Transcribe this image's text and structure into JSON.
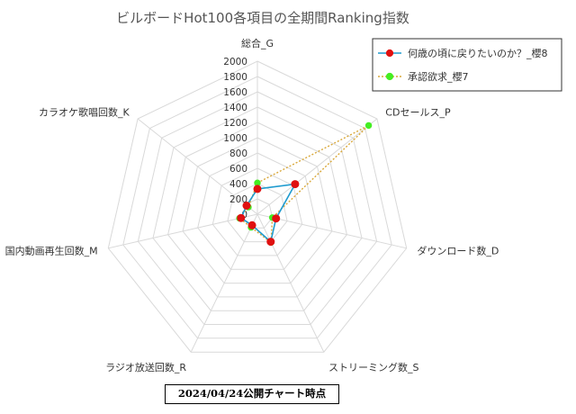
{
  "chart_data": {
    "type": "radar",
    "title": "ビルボードHot100各項目の全期間Ranking指数",
    "axes": [
      "総合_G",
      "CDセールス_P",
      "ダウンロード数_D",
      "ストリーミング数_S",
      "ラジオ放送回数_R",
      "国内動画再生回数_M",
      "カラオケ歌唱回数_K"
    ],
    "r_ticks": [
      "0",
      "200",
      "400",
      "600",
      "800",
      "1000",
      "1200",
      "1400",
      "1600",
      "1800",
      "2000"
    ],
    "rlim": [
      0,
      2000
    ],
    "grid": true,
    "legend_position": "top-right",
    "series": [
      {
        "name": "何歳の頃に戻りたいのか？_櫻8",
        "values": [
          330,
          630,
          250,
          400,
          160,
          220,
          180
        ],
        "color": "#1f9bcf",
        "marker_color": "#e01010",
        "line_style": "solid"
      },
      {
        "name": "承認欲求_櫻7",
        "values": [
          410,
          1860,
          200,
          410,
          190,
          240,
          150
        ],
        "color": "#d9a83a",
        "marker_color": "#44ee22",
        "line_style": "dotted"
      }
    ]
  },
  "footnote": "2024/04/24公開チャート時点"
}
